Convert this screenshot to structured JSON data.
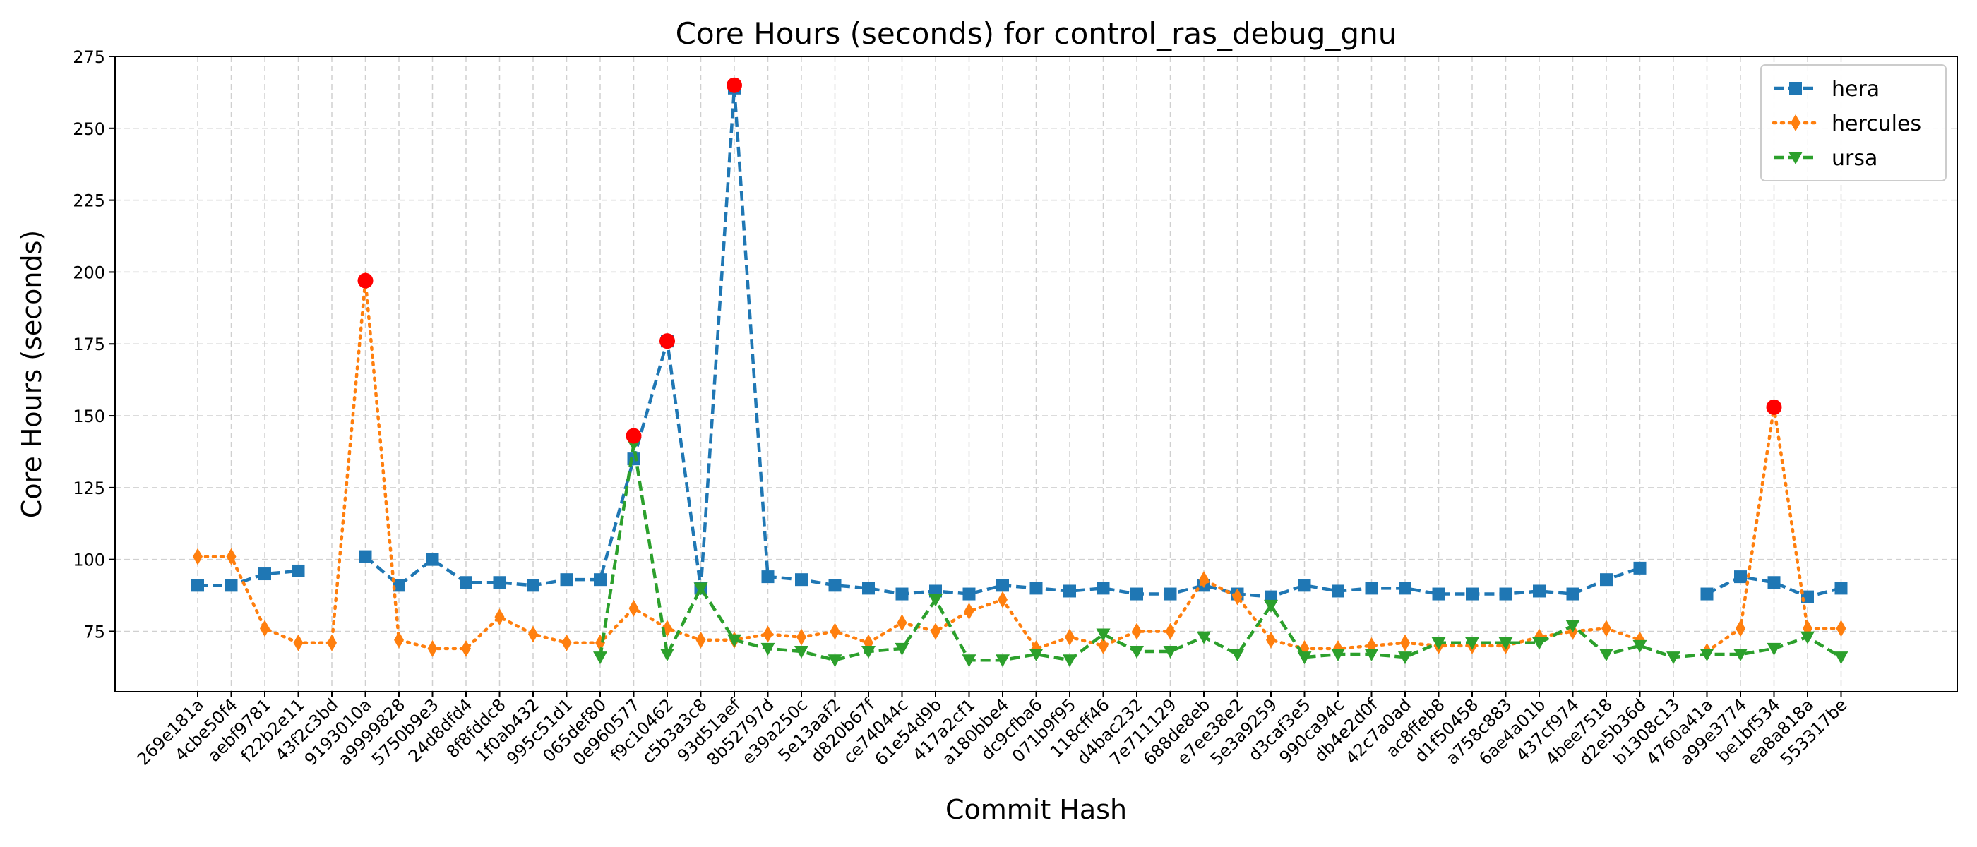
{
  "chart_data": {
    "type": "line",
    "title": "Core Hours (seconds) for control_ras_debug_gnu",
    "xlabel": "Commit Hash",
    "ylabel": "Core Hours (seconds)",
    "ylim": [
      54,
      275
    ],
    "yticks": [
      75,
      100,
      125,
      150,
      175,
      200,
      225,
      250,
      275
    ],
    "grid": true,
    "legend_position": "top-right",
    "categories": [
      "269e181a",
      "4cbe50f4",
      "aebf9781",
      "f22b2e11",
      "43f2c3bd",
      "9193010a",
      "a9999828",
      "5750b9e3",
      "24d8dfd4",
      "8f8fddc8",
      "1f0ab432",
      "995c51d1",
      "065def80",
      "0e960577",
      "f9c10462",
      "c5b3a3c8",
      "93d51aef",
      "8b52797d",
      "e39a250c",
      "5e13aaf2",
      "d820b67f",
      "ce74044c",
      "61e54d9b",
      "417a2cf1",
      "a180bbe4",
      "dc9cfba6",
      "071b9f95",
      "118cff46",
      "d4bac232",
      "7e711129",
      "688de8eb",
      "e7ee38e2",
      "5e3a9259",
      "d3caf3e5",
      "990ca94c",
      "db4e2d0f",
      "42c7a0ad",
      "ac8ffeb8",
      "d1f50458",
      "a758c883",
      "6ae4a01b",
      "437cf974",
      "4bee7518",
      "d2e5b36d",
      "b1308c13",
      "4760a41a",
      "a99e3774",
      "be1bf534",
      "ea8a818a",
      "553317be"
    ],
    "series": [
      {
        "name": "hera",
        "color": "#1f77b4",
        "linestyle": "dashed",
        "marker": "square",
        "values": [
          91,
          91,
          95,
          96,
          null,
          101,
          91,
          100,
          92,
          92,
          91,
          93,
          93,
          135,
          176,
          90,
          264,
          94,
          93,
          91,
          90,
          88,
          89,
          88,
          91,
          90,
          89,
          90,
          88,
          88,
          91,
          88,
          87,
          91,
          89,
          90,
          90,
          88,
          88,
          88,
          89,
          88,
          93,
          97,
          null,
          88,
          94,
          92,
          87,
          90
        ]
      },
      {
        "name": "hercules",
        "color": "#ff7f0e",
        "linestyle": "dotted",
        "marker": "diamond",
        "values": [
          101,
          101,
          76,
          71,
          71,
          197,
          72,
          69,
          69,
          80,
          74,
          71,
          71,
          83,
          76,
          72,
          72,
          74,
          73,
          75,
          71,
          78,
          75,
          82,
          86,
          69,
          73,
          70,
          75,
          75,
          93,
          87,
          72,
          69,
          69,
          70,
          71,
          70,
          70,
          70,
          73,
          75,
          76,
          72,
          null,
          68,
          76,
          153,
          76,
          76
        ]
      },
      {
        "name": "ursa",
        "color": "#2ca02c",
        "linestyle": "dashed",
        "marker": "triangle-down",
        "values": [
          null,
          null,
          null,
          null,
          null,
          null,
          null,
          null,
          null,
          null,
          null,
          null,
          66,
          140,
          67,
          90,
          72,
          69,
          68,
          65,
          68,
          69,
          86,
          65,
          65,
          67,
          65,
          74,
          68,
          68,
          73,
          67,
          84,
          66,
          67,
          67,
          66,
          71,
          71,
          71,
          71,
          77,
          67,
          70,
          66,
          67,
          67,
          69,
          73,
          66
        ]
      }
    ],
    "outliers": [
      {
        "category": "9193010a",
        "value": 197
      },
      {
        "category": "0e960577",
        "value": 143
      },
      {
        "category": "f9c10462",
        "value": 176
      },
      {
        "category": "93d51aef",
        "value": 265
      },
      {
        "category": "be1bf534",
        "value": 153
      }
    ],
    "outlier_color": "#ff0000"
  }
}
